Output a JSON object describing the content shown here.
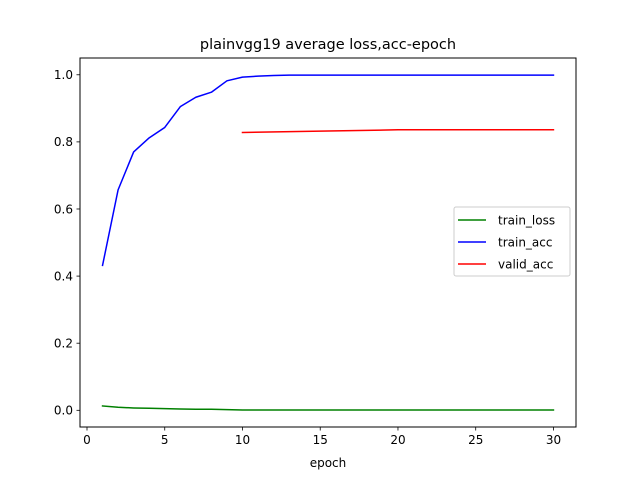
{
  "chart_data": {
    "type": "line",
    "title": "plainvgg19 average loss,acc-epoch",
    "xlabel": "epoch",
    "ylabel": "",
    "xlim": [
      -0.45,
      31.45
    ],
    "ylim": [
      -0.04975,
      1.05
    ],
    "xticks": [
      0,
      5,
      10,
      15,
      20,
      25,
      30
    ],
    "xtick_labels": [
      "0",
      "5",
      "10",
      "15",
      "20",
      "25",
      "30"
    ],
    "yticks": [
      0.0,
      0.2,
      0.4,
      0.6,
      0.8,
      1.0
    ],
    "ytick_labels": [
      "0.0",
      "0.2",
      "0.4",
      "0.6",
      "0.8",
      "1.0"
    ],
    "grid": false,
    "legend_position": "center-right",
    "series": [
      {
        "name": "train_loss",
        "color": "#008000",
        "x": [
          1,
          2,
          3,
          4,
          5,
          6,
          7,
          8,
          9,
          10,
          11,
          12,
          13,
          14,
          15,
          16,
          17,
          18,
          19,
          20,
          21,
          22,
          23,
          24,
          25,
          26,
          27,
          28,
          29,
          30
        ],
        "y": [
          0.013,
          0.009,
          0.007,
          0.006,
          0.005,
          0.004,
          0.003,
          0.003,
          0.002,
          0.001,
          0.001,
          0.001,
          0.001,
          0.001,
          0.001,
          0.001,
          0.001,
          0.001,
          0.001,
          0.001,
          0.001,
          0.001,
          0.001,
          0.001,
          0.001,
          0.001,
          0.001,
          0.001,
          0.001,
          0.001
        ]
      },
      {
        "name": "train_acc",
        "color": "#0000ff",
        "x": [
          1,
          2,
          3,
          4,
          5,
          6,
          7,
          8,
          9,
          10,
          11,
          12,
          13,
          14,
          15,
          16,
          17,
          18,
          19,
          20,
          21,
          22,
          23,
          24,
          25,
          26,
          27,
          28,
          29,
          30
        ],
        "y": [
          0.432,
          0.657,
          0.77,
          0.812,
          0.843,
          0.905,
          0.933,
          0.948,
          0.982,
          0.993,
          0.996,
          0.998,
          0.999,
          0.999,
          0.999,
          0.999,
          0.999,
          0.999,
          0.999,
          0.999,
          0.999,
          0.999,
          0.999,
          0.999,
          0.999,
          0.999,
          0.999,
          0.999,
          0.999,
          0.999
        ]
      },
      {
        "name": "valid_acc",
        "color": "#ff0000",
        "x": [
          10,
          15,
          20,
          25,
          30
        ],
        "y": [
          0.828,
          0.832,
          0.836,
          0.836,
          0.836
        ]
      }
    ]
  }
}
